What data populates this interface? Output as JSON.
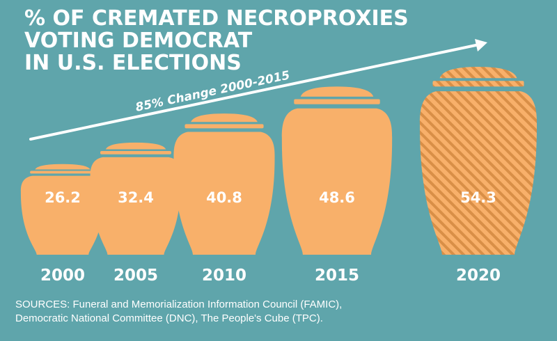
{
  "title_lines": [
    "% OF CREMATED NECROPROXIES",
    "VOTING DEMOCRAT",
    "IN U.S. ELECTIONS"
  ],
  "trend_label": "85% Change 2000-2015",
  "sources_lines": [
    "SOURCES: Funeral and Memorialization Information Council (FAMIC),",
    "Democratic National Committee (DNC), The People's Cube (TPC)."
  ],
  "colors": {
    "background": "#5fa5ab",
    "urn": "#f8b06a",
    "projected_stripe": "#d98f47",
    "text": "#ffffff"
  },
  "chart_data": {
    "type": "bar",
    "mark": "urn-pictogram",
    "title": "% OF CREMATED NECROPROXIES VOTING DEMOCRAT IN U.S. ELECTIONS",
    "categories": [
      "2000",
      "2005",
      "2010",
      "2015",
      "2020"
    ],
    "values": [
      26.2,
      32.4,
      40.8,
      48.6,
      54.3
    ],
    "value_labels": [
      "26.2",
      "32.4",
      "40.8",
      "48.6",
      "54.3"
    ],
    "hatched_categories": [
      "2020"
    ],
    "annotation": "85% Change 2000-2015",
    "xlabel": "",
    "ylabel": "",
    "grid": false
  }
}
